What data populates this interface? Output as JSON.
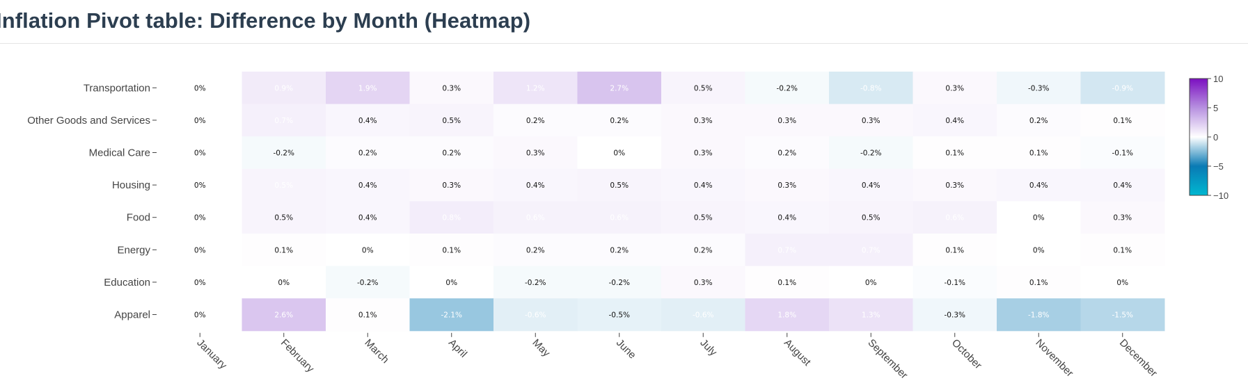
{
  "header": {
    "title": "Inflation Pivot table: Difference by Month (Heatmap)"
  },
  "chart_data": {
    "type": "heatmap",
    "title": "Inflation Pivot table: Difference by Month (Heatmap)",
    "x": [
      "January",
      "February",
      "March",
      "April",
      "May",
      "June",
      "July",
      "August",
      "September",
      "October",
      "November",
      "December"
    ],
    "y": [
      "Transportation",
      "Other Goods and Services",
      "Medical Care",
      "Housing",
      "Food",
      "Energy",
      "Education",
      "Apparel"
    ],
    "z": [
      [
        0,
        0.9,
        1.9,
        0.3,
        1.2,
        2.7,
        0.5,
        -0.2,
        -0.8,
        0.3,
        -0.3,
        -0.9
      ],
      [
        0,
        0.7,
        0.4,
        0.5,
        0.2,
        0.2,
        0.3,
        0.3,
        0.3,
        0.4,
        0.2,
        0.1
      ],
      [
        0,
        -0.2,
        0.2,
        0.2,
        0.3,
        0,
        0.3,
        0.2,
        -0.2,
        0.1,
        0.1,
        -0.1
      ],
      [
        0,
        0.5,
        0.4,
        0.3,
        0.4,
        0.5,
        0.4,
        0.3,
        0.4,
        0.3,
        0.4,
        0.4
      ],
      [
        0,
        0.5,
        0.4,
        0.8,
        0.6,
        0.6,
        0.5,
        0.4,
        0.5,
        0.6,
        0,
        0.3
      ],
      [
        0,
        0.1,
        0,
        0.1,
        0.2,
        0.2,
        0.2,
        0.7,
        0.7,
        0.1,
        0,
        0.1
      ],
      [
        0,
        0,
        -0.2,
        0,
        -0.2,
        -0.2,
        0.3,
        0.1,
        0,
        -0.1,
        0.1,
        0
      ],
      [
        0,
        2.6,
        0.1,
        -2.1,
        -0.6,
        -0.5,
        -0.6,
        1.8,
        1.3,
        -0.3,
        -1.8,
        -1.5
      ]
    ],
    "labels": [
      [
        "0%",
        "0.9%",
        "1.9%",
        "0.3%",
        "1.2%",
        "2.7%",
        "0.5%",
        "-0.2%",
        "-0.8%",
        "0.3%",
        "-0.3%",
        "-0.9%"
      ],
      [
        "0%",
        "0.7%",
        "0.4%",
        "0.5%",
        "0.2%",
        "0.2%",
        "0.3%",
        "0.3%",
        "0.3%",
        "0.4%",
        "0.2%",
        "0.1%"
      ],
      [
        "0%",
        "-0.2%",
        "0.2%",
        "0.2%",
        "0.3%",
        "0%",
        "0.3%",
        "0.2%",
        "-0.2%",
        "0.1%",
        "0.1%",
        "-0.1%"
      ],
      [
        "0%",
        "0.5%",
        "0.4%",
        "0.3%",
        "0.4%",
        "0.5%",
        "0.4%",
        "0.3%",
        "0.4%",
        "0.3%",
        "0.4%",
        "0.4%"
      ],
      [
        "0%",
        "0.5%",
        "0.4%",
        "0.8%",
        "0.6%",
        "0.6%",
        "0.5%",
        "0.4%",
        "0.5%",
        "0.6%",
        "0%",
        "0.3%"
      ],
      [
        "0%",
        "0.1%",
        "0%",
        "0.1%",
        "0.2%",
        "0.2%",
        "0.2%",
        "0.7%",
        "0.7%",
        "0.1%",
        "0%",
        "0.1%"
      ],
      [
        "0%",
        "0%",
        "-0.2%",
        "0%",
        "-0.2%",
        "-0.2%",
        "0.3%",
        "0.1%",
        "0%",
        "-0.1%",
        "0.1%",
        "0%"
      ],
      [
        "0%",
        "2.6%",
        "0.1%",
        "-2.1%",
        "-0.6%",
        "-0.5%",
        "-0.6%",
        "1.8%",
        "1.3%",
        "-0.3%",
        "-1.8%",
        "-1.5%"
      ]
    ],
    "white_label_cells": [
      [
        0,
        1
      ],
      [
        0,
        2
      ],
      [
        0,
        4
      ],
      [
        0,
        5
      ],
      [
        0,
        8
      ],
      [
        0,
        11
      ],
      [
        1,
        1
      ],
      [
        3,
        1
      ],
      [
        4,
        3
      ],
      [
        4,
        4
      ],
      [
        4,
        5
      ],
      [
        4,
        9
      ],
      [
        5,
        7
      ],
      [
        5,
        8
      ],
      [
        7,
        1
      ],
      [
        7,
        3
      ],
      [
        7,
        4
      ],
      [
        7,
        6
      ],
      [
        7,
        7
      ],
      [
        7,
        8
      ],
      [
        7,
        10
      ],
      [
        7,
        11
      ]
    ],
    "zmin": -10,
    "zmax": 10,
    "colorscale": [
      [
        0.0,
        "#00b7d1"
      ],
      [
        0.25,
        "#0a7ab4"
      ],
      [
        0.5,
        "#ffffff"
      ],
      [
        0.75,
        "#b791e0"
      ],
      [
        1.0,
        "#7b0fc0"
      ]
    ],
    "colorbar": {
      "tickvals": [
        10,
        5,
        0,
        -5,
        -10
      ],
      "ticktext": [
        "10",
        "5",
        "0",
        "−5",
        "−10"
      ]
    }
  }
}
